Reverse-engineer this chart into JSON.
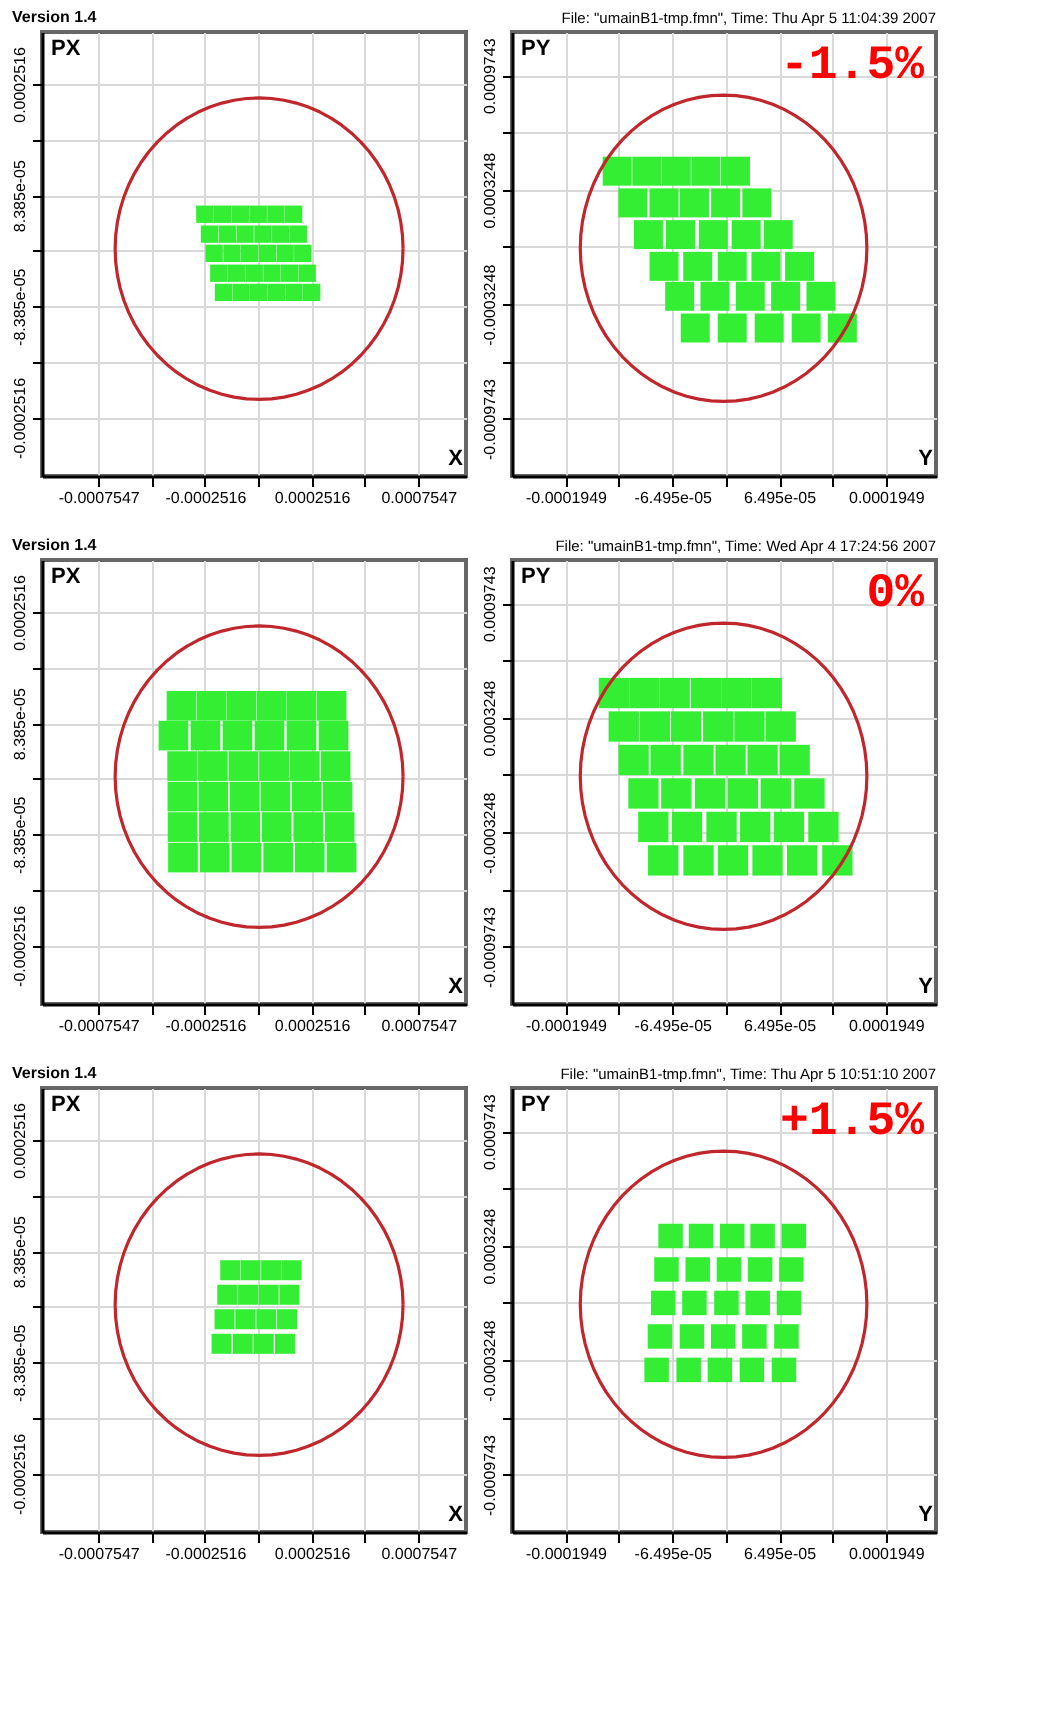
{
  "chart_data": [
    {
      "type": "scatter",
      "title": "Version 1.4",
      "xlabel": "X",
      "ylabel": "PX",
      "xlim": [
        -0.00102,
        0.00098
      ],
      "ylim": [
        -0.00034,
        0.00033
      ],
      "grid": true,
      "xticks": [
        {
          "value": -0.0007547,
          "label": "-0.0007547"
        },
        {
          "value": -0.00050315,
          "label": null
        },
        {
          "value": -0.0002516,
          "label": "-0.0002516"
        },
        {
          "value": 0,
          "label": null
        },
        {
          "value": 0.0002516,
          "label": "0.0002516"
        },
        {
          "value": 0.00050315,
          "label": null
        },
        {
          "value": 0.0007547,
          "label": "0.0007547"
        }
      ],
      "yticks": [
        {
          "value": -0.0002516,
          "label": "-0.0002516"
        },
        {
          "value": -0.00016773,
          "label": null
        },
        {
          "value": -8.385e-05,
          "label": "-8.385e-05"
        },
        {
          "value": 0,
          "label": null
        },
        {
          "value": 8.385e-05,
          "label": "8.385e-05"
        },
        {
          "value": 0.00016773,
          "label": null
        },
        {
          "value": 0.0002516,
          "label": "0.0002516"
        }
      ],
      "series": [
        {
          "marker": "square",
          "color": "#33ee33",
          "x": [
            -0.000252,
            -0.000168,
            -8.4e-05,
            0,
            8.4e-05,
            0.000167,
            -0.00023,
            -0.000146,
            -6.2e-05,
            2.2e-05,
            0.000106,
            0.000189,
            -0.000208,
            -0.000124,
            -4.1e-05,
            4.3e-05,
            0.000127,
            0.00021,
            -0.000186,
            -0.000103,
            -1.9e-05,
            6.5e-05,
            0.000148,
            0.000231,
            -0.000164,
            -8.1e-05,
            2e-06,
            8.6e-05,
            0.000169,
            0.000252
          ],
          "values": [
            5.5e-05,
            5.5e-05,
            5.5e-05,
            5.5e-05,
            5.5e-05,
            5.5e-05,
            2.5e-05,
            2.5e-05,
            2.5e-05,
            2.5e-05,
            2.5e-05,
            2.5e-05,
            -4e-06,
            -4e-06,
            -4e-06,
            -4e-06,
            -4e-06,
            -4e-06,
            -3.4e-05,
            -3.4e-05,
            -3.4e-05,
            -3.4e-05,
            -3.4e-05,
            -3.4e-05,
            -6.3e-05,
            -6.3e-05,
            -6.3e-05,
            -6.3e-05,
            -6.3e-05,
            -6.3e-05
          ]
        }
      ]
    },
    {
      "type": "scatter",
      "title": "File: \"umainB1-tmp.fmn\", Time: Thu Apr 5 11:04:39 2007",
      "xlabel": "Y",
      "ylabel": "PY",
      "xlim": [
        -0.00026,
        0.000256
      ],
      "ylim": [
        -0.0013,
        0.00122
      ],
      "grid": true,
      "annotations": [
        "-1.5%"
      ],
      "xticks": [
        {
          "value": -0.0001949,
          "label": "-0.0001949"
        },
        {
          "value": -0.00012993,
          "label": null
        },
        {
          "value": -6.495e-05,
          "label": "-6.495e-05"
        },
        {
          "value": 0,
          "label": null
        },
        {
          "value": 6.495e-05,
          "label": "6.495e-05"
        },
        {
          "value": 0.00012993,
          "label": null
        },
        {
          "value": 0.0001949,
          "label": "0.0001949"
        }
      ],
      "yticks": [
        {
          "value": -0.0009743,
          "label": "-0.0009743"
        },
        {
          "value": -0.00064955,
          "label": null
        },
        {
          "value": -0.0003248,
          "label": "-0.0003248"
        },
        {
          "value": 0,
          "label": null
        },
        {
          "value": 0.0003248,
          "label": "0.0003248"
        },
        {
          "value": 0.00064955,
          "label": null
        },
        {
          "value": 0.0009743,
          "label": "0.0009743"
        }
      ],
      "series": [
        {
          "marker": "square",
          "color": "#33ee33",
          "x": [
            -0.000132,
            -9.6e-05,
            -6e-05,
            -2.4e-05,
            1.2e-05,
            -0.000113,
            -7.5e-05,
            -3.8e-05,
            0,
            3.8e-05,
            -9.4e-05,
            -5.5e-05,
            -1.5e-05,
            2.5e-05,
            6.4e-05,
            -7.5e-05,
            -3.4e-05,
            8e-06,
            4.9e-05,
            9e-05,
            -5.6e-05,
            -1.3e-05,
            3e-05,
            7.3e-05,
            0.000116,
            -3.7e-05,
            8e-06,
            5.3e-05,
            9.8e-05,
            0.000142
          ],
          "values": [
            0.00043,
            0.00043,
            0.00043,
            0.00043,
            0.00043,
            0.00025,
            0.00025,
            0.00025,
            0.00025,
            0.00025,
            7e-05,
            7e-05,
            7e-05,
            7e-05,
            7e-05,
            -0.00011,
            -0.00011,
            -0.00011,
            -0.00011,
            -0.00011,
            -0.00028,
            -0.00028,
            -0.00028,
            -0.00028,
            -0.00028,
            -0.00046,
            -0.00046,
            -0.00046,
            -0.00046,
            -0.00046
          ]
        }
      ]
    },
    {
      "type": "scatter",
      "title": "Version 1.4",
      "xlabel": "X",
      "ylabel": "PX",
      "xlim": [
        -0.00102,
        0.00098
      ],
      "ylim": [
        -0.00034,
        0.00033
      ],
      "grid": true,
      "xticks": [
        {
          "value": -0.0007547,
          "label": "-0.0007547"
        },
        {
          "value": -0.00050315,
          "label": null
        },
        {
          "value": -0.0002516,
          "label": "-0.0002516"
        },
        {
          "value": 0,
          "label": null
        },
        {
          "value": 0.0002516,
          "label": "0.0002516"
        },
        {
          "value": 0.00050315,
          "label": null
        },
        {
          "value": 0.0007547,
          "label": "0.0007547"
        }
      ],
      "yticks": [
        {
          "value": -0.0002516,
          "label": "-0.0002516"
        },
        {
          "value": -0.00016773,
          "label": null
        },
        {
          "value": -8.385e-05,
          "label": "-8.385e-05"
        },
        {
          "value": 0,
          "label": null
        },
        {
          "value": 8.385e-05,
          "label": "8.385e-05"
        },
        {
          "value": 0.00016773,
          "label": null
        },
        {
          "value": 0.0002516,
          "label": "0.0002516"
        }
      ],
      "series": [
        {
          "marker": "square",
          "color": "#33ee33",
          "x": [
            -0.000362,
            -0.00022,
            -7.9e-05,
            6.3e-05,
            0.000204,
            0.000346,
            -0.0004,
            -0.000249,
            -9.8e-05,
            5.3e-05,
            0.000204,
            0.000355,
            -0.000359,
            -0.000214,
            -7e-05,
            7.5e-05,
            0.00022,
            0.000365,
            -0.000358,
            -0.000212,
            -6.5e-05,
            8.1e-05,
            0.000228,
            0.000374,
            -0.000357,
            -0.000209,
            -6.1e-05,
            8.7e-05,
            0.000236,
            0.000384,
            -0.000355,
            -0.000205,
            -5.6e-05,
            9.4e-05,
            0.000243,
            0.000393
          ],
          "values": [
            0.00011,
            0.00011,
            0.00011,
            0.00011,
            0.00011,
            0.00011,
            6.5e-05,
            6.5e-05,
            6.5e-05,
            6.5e-05,
            6.5e-05,
            6.5e-05,
            1.9e-05,
            1.9e-05,
            1.9e-05,
            1.9e-05,
            1.9e-05,
            1.9e-05,
            -2.7e-05,
            -2.7e-05,
            -2.7e-05,
            -2.7e-05,
            -2.7e-05,
            -2.7e-05,
            -7.3e-05,
            -7.3e-05,
            -7.3e-05,
            -7.3e-05,
            -7.3e-05,
            -7.3e-05,
            -0.000119,
            -0.000119,
            -0.000119,
            -0.000119,
            -0.000119,
            -0.000119
          ]
        }
      ]
    },
    {
      "type": "scatter",
      "title": "File: \"umainB1-tmp.fmn\", Time: Wed Apr 4 17:24:56 2007",
      "xlabel": "Y",
      "ylabel": "PY",
      "xlim": [
        -0.00026,
        0.000256
      ],
      "ylim": [
        -0.0013,
        0.00122
      ],
      "grid": true,
      "annotations": [
        "0%"
      ],
      "xticks": [
        {
          "value": -0.0001949,
          "label": "-0.0001949"
        },
        {
          "value": -0.00012993,
          "label": null
        },
        {
          "value": -6.495e-05,
          "label": "-6.495e-05"
        },
        {
          "value": 0,
          "label": null
        },
        {
          "value": 6.495e-05,
          "label": "6.495e-05"
        },
        {
          "value": 0.00012993,
          "label": null
        },
        {
          "value": 0.0001949,
          "label": "0.0001949"
        }
      ],
      "yticks": [
        {
          "value": -0.0009743,
          "label": "-0.0009743"
        },
        {
          "value": -0.00064955,
          "label": null
        },
        {
          "value": -0.0003248,
          "label": "-0.0003248"
        },
        {
          "value": 0,
          "label": null
        },
        {
          "value": 0.0003248,
          "label": "0.0003248"
        },
        {
          "value": 0.00064955,
          "label": null
        },
        {
          "value": 0.0009743,
          "label": "0.0009743"
        }
      ],
      "series": [
        {
          "marker": "square",
          "color": "#33ee33",
          "x": [
            -0.000136,
            -9.9e-05,
            -6.2e-05,
            -2.4e-05,
            1.3e-05,
            5e-05,
            -0.000124,
            -8.6e-05,
            -4.8e-05,
            -9e-06,
            2.9e-05,
            6.7e-05,
            -0.000112,
            -7.3e-05,
            -3.3e-05,
            6e-06,
            4.5e-05,
            8.4e-05,
            -0.0001,
            -6e-05,
            -1.9e-05,
            2.1e-05,
            6.1e-05,
            0.000102,
            -8.8e-05,
            -4.7e-05,
            -5e-06,
            3.6e-05,
            7.7e-05,
            0.000119,
            -7.6e-05,
            -3.3e-05,
            9e-06,
            5.1e-05,
            9.3e-05,
            0.000136
          ],
          "values": [
            0.000465,
            0.000465,
            0.000465,
            0.000465,
            0.000465,
            0.000465,
            0.000275,
            0.000275,
            0.000275,
            0.000275,
            0.000275,
            0.000275,
            8.5e-05,
            8.5e-05,
            8.5e-05,
            8.5e-05,
            8.5e-05,
            8.5e-05,
            -0.000105,
            -0.000105,
            -0.000105,
            -0.000105,
            -0.000105,
            -0.000105,
            -0.000295,
            -0.000295,
            -0.000295,
            -0.000295,
            -0.000295,
            -0.000295,
            -0.000485,
            -0.000485,
            -0.000485,
            -0.000485,
            -0.000485,
            -0.000485
          ]
        }
      ]
    },
    {
      "type": "scatter",
      "title": "Version 1.4",
      "xlabel": "X",
      "ylabel": "PX",
      "xlim": [
        -0.00102,
        0.00098
      ],
      "ylim": [
        -0.00034,
        0.00033
      ],
      "grid": true,
      "xticks": [
        {
          "value": -0.0007547,
          "label": "-0.0007547"
        },
        {
          "value": -0.00050315,
          "label": null
        },
        {
          "value": -0.0002516,
          "label": "-0.0002516"
        },
        {
          "value": 0,
          "label": null
        },
        {
          "value": 0.0002516,
          "label": "0.0002516"
        },
        {
          "value": 0.00050315,
          "label": null
        },
        {
          "value": 0.0007547,
          "label": "0.0007547"
        }
      ],
      "yticks": [
        {
          "value": -0.0002516,
          "label": "-0.0002516"
        },
        {
          "value": -0.00016773,
          "label": null
        },
        {
          "value": -8.385e-05,
          "label": "-8.385e-05"
        },
        {
          "value": 0,
          "label": null
        },
        {
          "value": 8.385e-05,
          "label": "8.385e-05"
        },
        {
          "value": 0.00016773,
          "label": null
        },
        {
          "value": 0.0002516,
          "label": "0.0002516"
        }
      ],
      "series": [
        {
          "marker": "square",
          "color": "#33ee33",
          "x": [
            -0.000132,
            -3.6e-05,
            6.1e-05,
            0.000157,
            -0.000146,
            -4.8e-05,
            4.9e-05,
            0.000147,
            -0.000159,
            -6.1e-05,
            3.8e-05,
            0.000136,
            -0.000173,
            -7.3e-05,
            2.6e-05,
            0.000126
          ],
          "values": [
            5.5e-05,
            5.5e-05,
            5.5e-05,
            5.5e-05,
            1.8e-05,
            1.8e-05,
            1.8e-05,
            1.8e-05,
            -1.9e-05,
            -1.9e-05,
            -1.9e-05,
            -1.9e-05,
            -5.6e-05,
            -5.6e-05,
            -5.6e-05,
            -5.6e-05
          ]
        }
      ]
    },
    {
      "type": "scatter",
      "title": "File: \"umainB1-tmp.fmn\", Time: Thu Apr 5 10:51:10 2007",
      "xlabel": "Y",
      "ylabel": "PY",
      "xlim": [
        -0.00026,
        0.000256
      ],
      "ylim": [
        -0.0013,
        0.00122
      ],
      "grid": true,
      "annotations": [
        "+1.5%"
      ],
      "xticks": [
        {
          "value": -0.0001949,
          "label": "-0.0001949"
        },
        {
          "value": -0.00012993,
          "label": null
        },
        {
          "value": -6.495e-05,
          "label": "-6.495e-05"
        },
        {
          "value": 0,
          "label": null
        },
        {
          "value": 6.495e-05,
          "label": "6.495e-05"
        },
        {
          "value": 0.00012993,
          "label": null
        },
        {
          "value": 0.0001949,
          "label": "0.0001949"
        }
      ],
      "yticks": [
        {
          "value": -0.0009743,
          "label": "-0.0009743"
        },
        {
          "value": -0.00064955,
          "label": null
        },
        {
          "value": -0.0003248,
          "label": "-0.0003248"
        },
        {
          "value": 0,
          "label": null
        },
        {
          "value": 0.0003248,
          "label": "0.0003248"
        },
        {
          "value": 0.00064955,
          "label": null
        },
        {
          "value": 0.0009743,
          "label": "0.0009743"
        }
      ],
      "series": [
        {
          "marker": "square",
          "color": "#33ee33",
          "x": [
            -6.7e-05,
            -3e-05,
            8e-06,
            4.5e-05,
            8.3e-05,
            -7.2e-05,
            -3.4e-05,
            4e-06,
            4.2e-05,
            8e-05,
            -7.6e-05,
            -3.8e-05,
            1e-06,
            3.9e-05,
            7.7e-05,
            -8e-05,
            -4.1e-05,
            -3e-06,
            3.5e-05,
            7.4e-05,
            -8.4e-05,
            -4.5e-05,
            -7e-06,
            3.2e-05,
            7.1e-05
          ],
          "values": [
            0.00038,
            0.00038,
            0.00038,
            0.00038,
            0.00038,
            0.00019,
            0.00019,
            0.00019,
            0.00019,
            0.00019,
            0,
            0,
            0,
            0,
            0,
            -0.00019,
            -0.00019,
            -0.00019,
            -0.00019,
            -0.00019,
            -0.00038,
            -0.00038,
            -0.00038,
            -0.00038,
            -0.00038
          ]
        }
      ]
    }
  ]
}
